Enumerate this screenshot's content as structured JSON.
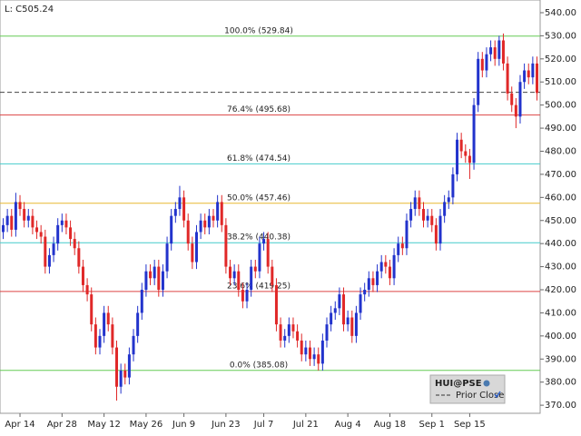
{
  "chart_data": {
    "type": "candlestick",
    "last_label": "L: C505.24",
    "series_name": "HUI@PSE",
    "up_color": "#2233cc",
    "down_color": "#e02828",
    "categories": [
      null,
      null,
      null,
      null,
      "Apr 14",
      null,
      null,
      null,
      null,
      null,
      null,
      null,
      null,
      null,
      "Apr 28",
      null,
      null,
      null,
      null,
      null,
      null,
      null,
      null,
      null,
      "May 12",
      null,
      null,
      null,
      null,
      null,
      null,
      null,
      null,
      null,
      "May 26",
      null,
      null,
      null,
      null,
      null,
      null,
      null,
      null,
      "Jun 9",
      null,
      null,
      null,
      null,
      null,
      null,
      null,
      null,
      null,
      "Jun 23",
      null,
      null,
      null,
      null,
      null,
      null,
      null,
      null,
      "Jul 7",
      null,
      null,
      null,
      null,
      null,
      null,
      null,
      null,
      null,
      "Jul 21",
      null,
      null,
      null,
      null,
      null,
      null,
      null,
      null,
      null,
      "Aug 4",
      null,
      null,
      null,
      null,
      null,
      null,
      null,
      null,
      null,
      "Aug 18",
      null,
      null,
      null,
      null,
      null,
      null,
      null,
      null,
      null,
      "Sep 1",
      null,
      null,
      null,
      null,
      null,
      null,
      null,
      null,
      "Sep 15",
      null,
      null,
      null,
      null,
      null,
      null,
      null,
      null,
      null,
      null,
      null,
      null,
      null,
      null,
      null,
      null
    ],
    "ohlc": [
      [
        445,
        451,
        442,
        448
      ],
      [
        448,
        455,
        445,
        452
      ],
      [
        452,
        455,
        443,
        446
      ],
      [
        446,
        462,
        443,
        458
      ],
      [
        458,
        461,
        452,
        455
      ],
      [
        455,
        458,
        447,
        450
      ],
      [
        450,
        455,
        447,
        452
      ],
      [
        452,
        455,
        444,
        447
      ],
      [
        447,
        450,
        442,
        445
      ],
      [
        445,
        448,
        440,
        443
      ],
      [
        443,
        446,
        427,
        430
      ],
      [
        430,
        438,
        427,
        435
      ],
      [
        435,
        443,
        432,
        440
      ],
      [
        440,
        451,
        437,
        448
      ],
      [
        448,
        453,
        445,
        450
      ],
      [
        450,
        453,
        444,
        447
      ],
      [
        447,
        450,
        439,
        442
      ],
      [
        442,
        445,
        435,
        438
      ],
      [
        438,
        441,
        427,
        430
      ],
      [
        430,
        433,
        419,
        422
      ],
      [
        422,
        425,
        415,
        418
      ],
      [
        418,
        421,
        402,
        405
      ],
      [
        405,
        408,
        392,
        395
      ],
      [
        395,
        403,
        392,
        400
      ],
      [
        400,
        413,
        397,
        410
      ],
      [
        410,
        413,
        402,
        405
      ],
      [
        405,
        408,
        392,
        395
      ],
      [
        395,
        398,
        372,
        378
      ],
      [
        378,
        388,
        375,
        385
      ],
      [
        385,
        388,
        379,
        382
      ],
      [
        382,
        395,
        379,
        392
      ],
      [
        392,
        403,
        389,
        400
      ],
      [
        400,
        413,
        397,
        410
      ],
      [
        410,
        423,
        407,
        420
      ],
      [
        420,
        431,
        417,
        428
      ],
      [
        428,
        431,
        422,
        425
      ],
      [
        425,
        433,
        422,
        430
      ],
      [
        430,
        433,
        417,
        420
      ],
      [
        420,
        431,
        417,
        428
      ],
      [
        428,
        443,
        425,
        440
      ],
      [
        440,
        455,
        437,
        452
      ],
      [
        452,
        458,
        449,
        455
      ],
      [
        455,
        465,
        452,
        460
      ],
      [
        460,
        463,
        447,
        450
      ],
      [
        450,
        453,
        437,
        440
      ],
      [
        440,
        443,
        429,
        432
      ],
      [
        432,
        448,
        429,
        445
      ],
      [
        445,
        453,
        442,
        450
      ],
      [
        450,
        453,
        444,
        447
      ],
      [
        447,
        455,
        444,
        452
      ],
      [
        452,
        455,
        447,
        450
      ],
      [
        450,
        461,
        447,
        458
      ],
      [
        458,
        461,
        445,
        448
      ],
      [
        448,
        451,
        427,
        430
      ],
      [
        430,
        433,
        422,
        425
      ],
      [
        425,
        431,
        422,
        428
      ],
      [
        428,
        431,
        417,
        420
      ],
      [
        420,
        423,
        412,
        415
      ],
      [
        415,
        423,
        412,
        420
      ],
      [
        420,
        433,
        417,
        430
      ],
      [
        430,
        433,
        425,
        428
      ],
      [
        428,
        443,
        425,
        440
      ],
      [
        440,
        445,
        437,
        442
      ],
      [
        442,
        445,
        427,
        430
      ],
      [
        430,
        433,
        419,
        422
      ],
      [
        422,
        425,
        402,
        405
      ],
      [
        405,
        408,
        395,
        398
      ],
      [
        398,
        403,
        395,
        400
      ],
      [
        400,
        408,
        397,
        405
      ],
      [
        405,
        408,
        399,
        402
      ],
      [
        402,
        405,
        395,
        398
      ],
      [
        398,
        401,
        389,
        392
      ],
      [
        392,
        398,
        389,
        395
      ],
      [
        395,
        398,
        387,
        390
      ],
      [
        390,
        395,
        387,
        392
      ],
      [
        392,
        395,
        385,
        388
      ],
      [
        388,
        401,
        385,
        398
      ],
      [
        398,
        408,
        395,
        405
      ],
      [
        405,
        413,
        402,
        410
      ],
      [
        410,
        415,
        407,
        412
      ],
      [
        412,
        421,
        409,
        418
      ],
      [
        418,
        421,
        402,
        405
      ],
      [
        405,
        411,
        402,
        408
      ],
      [
        408,
        411,
        397,
        400
      ],
      [
        400,
        413,
        397,
        410
      ],
      [
        410,
        421,
        407,
        418
      ],
      [
        418,
        423,
        415,
        420
      ],
      [
        420,
        428,
        417,
        425
      ],
      [
        425,
        428,
        419,
        422
      ],
      [
        422,
        431,
        419,
        428
      ],
      [
        428,
        435,
        425,
        432
      ],
      [
        432,
        435,
        427,
        430
      ],
      [
        430,
        433,
        422,
        425
      ],
      [
        425,
        438,
        422,
        435
      ],
      [
        435,
        443,
        432,
        440
      ],
      [
        440,
        443,
        435,
        438
      ],
      [
        438,
        453,
        435,
        450
      ],
      [
        450,
        458,
        447,
        455
      ],
      [
        455,
        463,
        452,
        460
      ],
      [
        460,
        463,
        452,
        455
      ],
      [
        455,
        458,
        447,
        450
      ],
      [
        450,
        455,
        447,
        452
      ],
      [
        452,
        455,
        445,
        448
      ],
      [
        448,
        451,
        437,
        440
      ],
      [
        440,
        455,
        437,
        452
      ],
      [
        452,
        461,
        449,
        458
      ],
      [
        458,
        463,
        455,
        460
      ],
      [
        460,
        473,
        457,
        470
      ],
      [
        470,
        488,
        467,
        485
      ],
      [
        485,
        488,
        477,
        480
      ],
      [
        480,
        483,
        475,
        478
      ],
      [
        478,
        481,
        468,
        475
      ],
      [
        475,
        503,
        472,
        500
      ],
      [
        500,
        523,
        497,
        520
      ],
      [
        520,
        523,
        512,
        515
      ],
      [
        515,
        525,
        512,
        522
      ],
      [
        522,
        528,
        519,
        525
      ],
      [
        525,
        528,
        517,
        520
      ],
      [
        520,
        530,
        517,
        528
      ],
      [
        528,
        531,
        515,
        518
      ],
      [
        518,
        521,
        502,
        505
      ],
      [
        505,
        508,
        497,
        500
      ],
      [
        500,
        503,
        490,
        495
      ],
      [
        495,
        513,
        492,
        510
      ],
      [
        510,
        518,
        507,
        515
      ],
      [
        515,
        518,
        509,
        512
      ],
      [
        512,
        521,
        509,
        518
      ],
      [
        518,
        521,
        502,
        505.24
      ]
    ],
    "fib_levels": [
      {
        "value": 529.84,
        "label": "100.0% (529.84)",
        "color": "#66cc55"
      },
      {
        "value": 495.68,
        "label": "76.4% (495.68)",
        "color": "#dd4444"
      },
      {
        "value": 474.54,
        "label": "61.8% (474.54)",
        "color": "#44cccc"
      },
      {
        "value": 457.46,
        "label": "50.0% (457.46)",
        "color": "#e8b830"
      },
      {
        "value": 440.38,
        "label": "38.2% (440.38)",
        "color": "#44cccc"
      },
      {
        "value": 419.25,
        "label": "23.6% (419.25)",
        "color": "#dd4444"
      },
      {
        "value": 385.08,
        "label": "0.0% (385.08)",
        "color": "#66cc55"
      }
    ],
    "prior_close": 505.5,
    "prior_close_label": "Prior Close",
    "ylim": [
      366.5,
      545.5
    ],
    "yticks": [
      {
        "value": 370,
        "label": "370.00"
      },
      {
        "value": 380,
        "label": "380.00"
      },
      {
        "value": 390,
        "label": "390.00"
      },
      {
        "value": 400,
        "label": "400.00"
      },
      {
        "value": 410,
        "label": "410.00"
      },
      {
        "value": 420,
        "label": "420.00"
      },
      {
        "value": 430,
        "label": "430.00"
      },
      {
        "value": 440,
        "label": "440.00"
      },
      {
        "value": 450,
        "label": "450.00"
      },
      {
        "value": 460,
        "label": "460.00"
      },
      {
        "value": 470,
        "label": "470.00"
      },
      {
        "value": 480,
        "label": "480.00"
      },
      {
        "value": 490,
        "label": "490.00"
      },
      {
        "value": 500,
        "label": "500.00"
      },
      {
        "value": 510,
        "label": "510.00"
      },
      {
        "value": 520,
        "label": "520.00"
      },
      {
        "value": 530,
        "label": "530.00"
      },
      {
        "value": 540,
        "label": "540.00"
      }
    ]
  }
}
